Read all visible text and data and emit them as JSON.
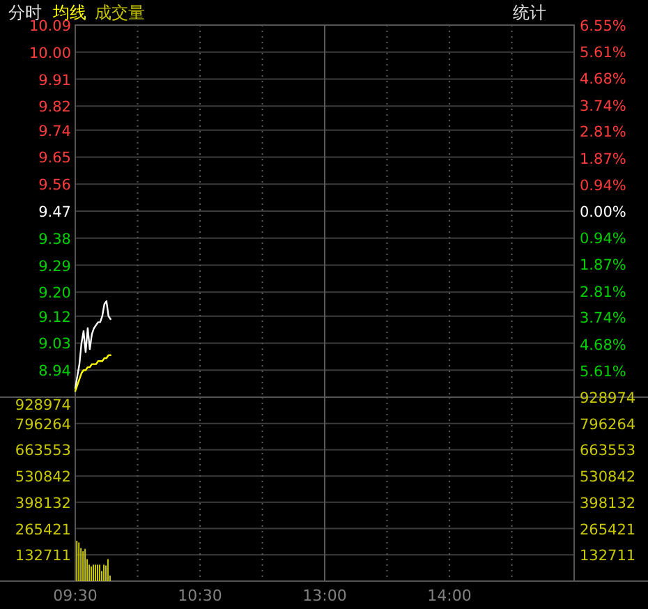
{
  "chart_data": [
    {
      "type": "line",
      "title": "分时",
      "annotations": [
        "统计"
      ],
      "categories": [
        null,
        null,
        null,
        null,
        null,
        null,
        null,
        null,
        null,
        null,
        null,
        null,
        null,
        null,
        null,
        null,
        null,
        null,
        null,
        null,
        null,
        null,
        null,
        null,
        null,
        null,
        null,
        null,
        null,
        null,
        null,
        null,
        null,
        null,
        null,
        null,
        null,
        null,
        null,
        null,
        null,
        null,
        null,
        null,
        null,
        null,
        null,
        null,
        null,
        null,
        null,
        null,
        null,
        null,
        null,
        null,
        null,
        null,
        null,
        null,
        null,
        null,
        null,
        null,
        null,
        null,
        null,
        null,
        null,
        null,
        null,
        null,
        null,
        null,
        null,
        null,
        null,
        null,
        null,
        null,
        null,
        null,
        null,
        null,
        null,
        null,
        null,
        null,
        null,
        null,
        null,
        null,
        null,
        null,
        null,
        null,
        null,
        null,
        null,
        null,
        null,
        null,
        null,
        null,
        null,
        null,
        null,
        null,
        null,
        null,
        null,
        null,
        null,
        null,
        null,
        null,
        null,
        null,
        null,
        null,
        null,
        null,
        null,
        null,
        null,
        null,
        null,
        null,
        null,
        null,
        null,
        null,
        null,
        null,
        null,
        null,
        null,
        null,
        null,
        null,
        null,
        null,
        null,
        null,
        null,
        null,
        null,
        null,
        null,
        null,
        null,
        null,
        null,
        null,
        null,
        null,
        null,
        null,
        null,
        null,
        null,
        null,
        null,
        null,
        null,
        null,
        null,
        null,
        null,
        null,
        null,
        null,
        null,
        null,
        null,
        null,
        null,
        null,
        null,
        null,
        null,
        null,
        null,
        null,
        null,
        null,
        null,
        null,
        null,
        null,
        null,
        null,
        null,
        null,
        null,
        null,
        null,
        null,
        null,
        null,
        null,
        null,
        null,
        null,
        null,
        null,
        null,
        null,
        null,
        null,
        null,
        null,
        null,
        null,
        null,
        null,
        null,
        null,
        null,
        null,
        null,
        null,
        null,
        null,
        null,
        null,
        null,
        null,
        null,
        null,
        null,
        null,
        null,
        null,
        null,
        null,
        null,
        null,
        null,
        null,
        null
      ],
      "ylim": [
        8.85,
        10.09
      ],
      "yticks": [
        {
          "value": 10.09,
          "label": "10.09"
        },
        {
          "value": 10.0,
          "label": "10.00"
        },
        {
          "value": 9.91,
          "label": "9.91"
        },
        {
          "value": 9.82,
          "label": "9.82"
        },
        {
          "value": 9.74,
          "label": "9.74"
        },
        {
          "value": 9.65,
          "label": "9.65"
        },
        {
          "value": 9.56,
          "label": "9.56"
        },
        {
          "value": 9.47,
          "label": "9.47"
        },
        {
          "value": 9.38,
          "label": "9.38"
        },
        {
          "value": 9.29,
          "label": "9.29"
        },
        {
          "value": 9.2,
          "label": "9.20"
        },
        {
          "value": 9.12,
          "label": "9.12"
        },
        {
          "value": 9.03,
          "label": "9.03"
        },
        {
          "value": 8.94,
          "label": "8.94"
        }
      ],
      "y2lim": [
        -6.55,
        6.55
      ],
      "y2ticks": [
        {
          "value": 6.55,
          "label": "6.55%"
        },
        {
          "value": 5.61,
          "label": "5.61%"
        },
        {
          "value": 4.68,
          "label": "4.68%"
        },
        {
          "value": 3.74,
          "label": "3.74%"
        },
        {
          "value": 2.81,
          "label": "2.81%"
        },
        {
          "value": 1.87,
          "label": "1.87%"
        },
        {
          "value": 0.94,
          "label": "0.94%"
        },
        {
          "value": 0,
          "label": "0.00%"
        },
        {
          "value": -0.94,
          "label": "0.94%"
        },
        {
          "value": -1.87,
          "label": "1.87%"
        },
        {
          "value": -2.81,
          "label": "2.81%"
        },
        {
          "value": -3.74,
          "label": "3.74%"
        },
        {
          "value": -4.68,
          "label": "4.68%"
        },
        {
          "value": -5.61,
          "label": "5.61%"
        }
      ],
      "grid": true,
      "series": [
        {
          "color": "#ffffff",
          "values": [
            8.88,
            8.92,
            8.96,
            9.03,
            9.07,
            9.0,
            9.08,
            9.01,
            9.06,
            9.08,
            9.09,
            9.1,
            9.1,
            9.12,
            9.16,
            9.17,
            9.12,
            9.11,
            null,
            null,
            null,
            null,
            null,
            null,
            null,
            null,
            null,
            null,
            null,
            null,
            null,
            null,
            null,
            null,
            null,
            null,
            null,
            null,
            null,
            null,
            null,
            null,
            null,
            null,
            null,
            null,
            null,
            null,
            null,
            null,
            null,
            null,
            null,
            null,
            null,
            null,
            null,
            null,
            null,
            null,
            null,
            null,
            null,
            null,
            null,
            null,
            null,
            null,
            null,
            null,
            null,
            null,
            null,
            null,
            null,
            null,
            null,
            null,
            null,
            null,
            null,
            null,
            null,
            null,
            null,
            null,
            null,
            null,
            null,
            null,
            null,
            null,
            null,
            null,
            null,
            null,
            null,
            null,
            null,
            null,
            null,
            null,
            null,
            null,
            null,
            null,
            null,
            null,
            null,
            null,
            null,
            null,
            null,
            null,
            null,
            null,
            null,
            null,
            null,
            null,
            null,
            null,
            null,
            null,
            null,
            null,
            null,
            null,
            null,
            null,
            null,
            null,
            null,
            null,
            null,
            null,
            null,
            null,
            null,
            null,
            null,
            null,
            null,
            null,
            null,
            null,
            null,
            null,
            null,
            null,
            null,
            null,
            null,
            null,
            null,
            null,
            null,
            null,
            null,
            null,
            null,
            null,
            null,
            null,
            null,
            null,
            null,
            null,
            null,
            null,
            null,
            null,
            null,
            null,
            null,
            null,
            null,
            null,
            null,
            null,
            null,
            null,
            null,
            null,
            null,
            null,
            null,
            null,
            null,
            null,
            null,
            null,
            null,
            null,
            null,
            null,
            null,
            null,
            null,
            null,
            null,
            null,
            null,
            null,
            null,
            null,
            null,
            null,
            null,
            null,
            null,
            null,
            null,
            null,
            null,
            null,
            null,
            null,
            null,
            null,
            null,
            null,
            null,
            null,
            null,
            null,
            null,
            null,
            null,
            null,
            null,
            null,
            null,
            null,
            null,
            null,
            null,
            null,
            null,
            null,
            null
          ]
        },
        {
          "name": "均线",
          "color": "#ffff00",
          "values": [
            8.87,
            8.89,
            8.91,
            8.93,
            8.94,
            8.94,
            8.95,
            8.95,
            8.96,
            8.96,
            8.96,
            8.97,
            8.97,
            8.97,
            8.98,
            8.98,
            8.99,
            8.99,
            null,
            null,
            null,
            null,
            null,
            null,
            null,
            null,
            null,
            null,
            null,
            null,
            null,
            null,
            null,
            null,
            null,
            null,
            null,
            null,
            null,
            null,
            null,
            null,
            null,
            null,
            null,
            null,
            null,
            null,
            null,
            null,
            null,
            null,
            null,
            null,
            null,
            null,
            null,
            null,
            null,
            null,
            null,
            null,
            null,
            null,
            null,
            null,
            null,
            null,
            null,
            null,
            null,
            null,
            null,
            null,
            null,
            null,
            null,
            null,
            null,
            null,
            null,
            null,
            null,
            null,
            null,
            null,
            null,
            null,
            null,
            null,
            null,
            null,
            null,
            null,
            null,
            null,
            null,
            null,
            null,
            null,
            null,
            null,
            null,
            null,
            null,
            null,
            null,
            null,
            null,
            null,
            null,
            null,
            null,
            null,
            null,
            null,
            null,
            null,
            null,
            null,
            null,
            null,
            null,
            null,
            null,
            null,
            null,
            null,
            null,
            null,
            null,
            null,
            null,
            null,
            null,
            null,
            null,
            null,
            null,
            null,
            null,
            null,
            null,
            null,
            null,
            null,
            null,
            null,
            null,
            null,
            null,
            null,
            null,
            null,
            null,
            null,
            null,
            null,
            null,
            null,
            null,
            null,
            null,
            null,
            null,
            null,
            null,
            null,
            null,
            null,
            null,
            null,
            null,
            null,
            null,
            null,
            null,
            null,
            null,
            null,
            null,
            null,
            null,
            null,
            null,
            null,
            null,
            null,
            null,
            null,
            null,
            null,
            null,
            null,
            null,
            null,
            null,
            null,
            null,
            null,
            null,
            null,
            null,
            null,
            null,
            null,
            null,
            null,
            null,
            null,
            null,
            null,
            null,
            null,
            null,
            null,
            null,
            null,
            null,
            null,
            null,
            null,
            null,
            null,
            null,
            null,
            null,
            null,
            null,
            null,
            null,
            null,
            null,
            null,
            null,
            null,
            null,
            null,
            null,
            null,
            null
          ]
        }
      ]
    },
    {
      "type": "bar",
      "categories": [
        "09:30",
        null,
        null,
        null,
        null,
        null,
        null,
        null,
        null,
        null,
        null,
        null,
        null,
        null,
        null,
        null,
        null,
        null,
        null,
        null,
        null,
        null,
        null,
        null,
        null,
        null,
        null,
        null,
        null,
        null,
        null,
        null,
        null,
        null,
        null,
        null,
        null,
        null,
        null,
        null,
        null,
        null,
        null,
        null,
        null,
        null,
        null,
        null,
        null,
        null,
        null,
        null,
        null,
        null,
        null,
        null,
        null,
        null,
        null,
        null,
        "10:30",
        null,
        null,
        null,
        null,
        null,
        null,
        null,
        null,
        null,
        null,
        null,
        null,
        null,
        null,
        null,
        null,
        null,
        null,
        null,
        null,
        null,
        null,
        null,
        null,
        null,
        null,
        null,
        null,
        null,
        null,
        null,
        null,
        null,
        null,
        null,
        null,
        null,
        null,
        null,
        null,
        null,
        null,
        null,
        null,
        null,
        null,
        null,
        null,
        null,
        null,
        null,
        null,
        null,
        null,
        null,
        null,
        null,
        null,
        null,
        "13:00",
        null,
        null,
        null,
        null,
        null,
        null,
        null,
        null,
        null,
        null,
        null,
        null,
        null,
        null,
        null,
        null,
        null,
        null,
        null,
        null,
        null,
        null,
        null,
        null,
        null,
        null,
        null,
        null,
        null,
        null,
        null,
        null,
        null,
        null,
        null,
        null,
        null,
        null,
        null,
        null,
        null,
        null,
        null,
        null,
        null,
        null,
        null,
        null,
        null,
        null,
        null,
        null,
        null,
        null,
        null,
        null,
        null,
        null,
        null,
        "14:00",
        null,
        null,
        null,
        null,
        null,
        null,
        null,
        null,
        null,
        null,
        null,
        null,
        null,
        null,
        null,
        null,
        null,
        null,
        null,
        null,
        null,
        null,
        null,
        null,
        null,
        null,
        null,
        null,
        null,
        null,
        null,
        null,
        null,
        null,
        null,
        null,
        null,
        null,
        null,
        null,
        null,
        null,
        null,
        null,
        null,
        null,
        null,
        null,
        null,
        null,
        null,
        null,
        null,
        null,
        null,
        null,
        null,
        null,
        null,
        null
      ],
      "ylim": [
        0,
        928974
      ],
      "yticks": [
        132711,
        265421,
        398132,
        530842,
        663553,
        796264,
        928974
      ],
      "y2lim": [
        0,
        928974
      ],
      "y2ticks": [
        132711,
        265421,
        398132,
        530842,
        663553,
        796264,
        928974
      ],
      "grid": true,
      "series": [
        {
          "name": "成交量",
          "color": "#c8c800",
          "values": [
            204000,
            195000,
            167000,
            151000,
            163000,
            111000,
            83000,
            74000,
            83000,
            83000,
            83000,
            83000,
            51000,
            83000,
            79000,
            111000,
            28000,
            null,
            null,
            null,
            null,
            null,
            null,
            null,
            null,
            null,
            null,
            null,
            null,
            null,
            null,
            null,
            null,
            null,
            null,
            null,
            null,
            null,
            null,
            null,
            null,
            null,
            null,
            null,
            null,
            null,
            null,
            null,
            null,
            null,
            null,
            null,
            null,
            null,
            null,
            null,
            null,
            null,
            null,
            null,
            null,
            null,
            null,
            null,
            null,
            null,
            null,
            null,
            null,
            null,
            null,
            null,
            null,
            null,
            null,
            null,
            null,
            null,
            null,
            null,
            null,
            null,
            null,
            null,
            null,
            null,
            null,
            null,
            null,
            null,
            null,
            null,
            null,
            null,
            null,
            null,
            null,
            null,
            null,
            null,
            null,
            null,
            null,
            null,
            null,
            null,
            null,
            null,
            null,
            null,
            null,
            null,
            null,
            null,
            null,
            null,
            null,
            null,
            null,
            null,
            null,
            null,
            null,
            null,
            null,
            null,
            null,
            null,
            null,
            null,
            null,
            null,
            null,
            null,
            null,
            null,
            null,
            null,
            null,
            null,
            null,
            null,
            null,
            null,
            null,
            null,
            null,
            null,
            null,
            null,
            null,
            null,
            null,
            null,
            null,
            null,
            null,
            null,
            null,
            null,
            null,
            null,
            null,
            null,
            null,
            null,
            null,
            null,
            null,
            null,
            null,
            null,
            null,
            null,
            null,
            null,
            null,
            null,
            null,
            null,
            null,
            null,
            null,
            null,
            null,
            null,
            null,
            null,
            null,
            null,
            null,
            null,
            null,
            null,
            null,
            null,
            null,
            null,
            null,
            null,
            null,
            null,
            null,
            null,
            null,
            null,
            null,
            null,
            null,
            null,
            null,
            null,
            null,
            null,
            null,
            null,
            null,
            null,
            null,
            null,
            null,
            null,
            null,
            null,
            null,
            null,
            null,
            null,
            null,
            null,
            null,
            null,
            null,
            null,
            null,
            null,
            null,
            null,
            null,
            null,
            null
          ]
        }
      ]
    }
  ]
}
